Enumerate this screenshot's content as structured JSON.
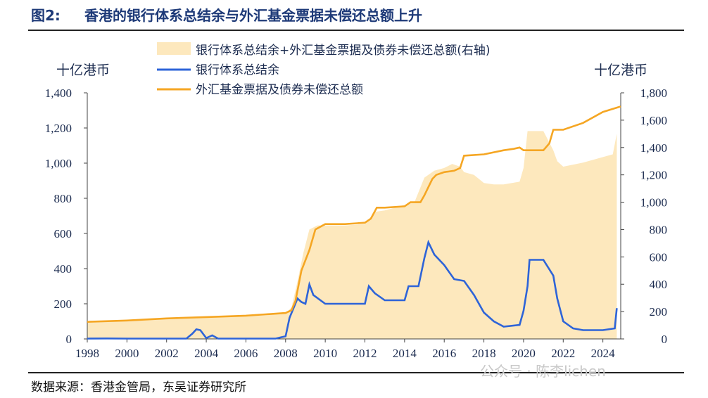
{
  "figure": {
    "number": "图2:",
    "title": "香港的银行体系总结余与外汇基金票据未偿还总额上升",
    "source": "数据来源：香港金管局，东吴证券研究所",
    "watermark": "公众号 · 陈李lichen"
  },
  "colors": {
    "area": "#fde8bd",
    "blue_line": "#2e64d8",
    "orange_line": "#f5a623",
    "text": "#1b2b4f"
  },
  "chart_data": {
    "type": "line",
    "title": "",
    "ylabel_left": "十亿港币",
    "ylabel_right": "十亿港币",
    "xlim": [
      1998,
      2024.9
    ],
    "ylim_left": [
      0,
      1400
    ],
    "ylim_right": [
      0,
      1800
    ],
    "x_ticks": [
      1998,
      2000,
      2002,
      2004,
      2006,
      2008,
      2010,
      2012,
      2014,
      2016,
      2018,
      2020,
      2022,
      2024
    ],
    "y_ticks_left": [
      "0",
      "200",
      "400",
      "600",
      "800",
      "1,000",
      "1,200",
      "1,400"
    ],
    "y_ticks_right": [
      "0",
      "200",
      "400",
      "600",
      "800",
      "1,000",
      "1,200",
      "1,400",
      "1,600",
      "1,800"
    ],
    "grid": false,
    "legend": "top-center",
    "series": [
      {
        "name": "银行体系总结余+外汇基金票据及债券未偿还总额(右轴)",
        "kind": "area",
        "axis": "right",
        "points": [
          [
            1998,
            125
          ],
          [
            2000,
            135
          ],
          [
            2002,
            150
          ],
          [
            2003.5,
            160
          ],
          [
            2004,
            165
          ],
          [
            2006,
            175
          ],
          [
            2007.5,
            185
          ],
          [
            2008,
            190
          ],
          [
            2008.3,
            230
          ],
          [
            2008.6,
            420
          ],
          [
            2008.9,
            630
          ],
          [
            2009.2,
            800
          ],
          [
            2009.6,
            830
          ],
          [
            2010,
            830
          ],
          [
            2011,
            830
          ],
          [
            2012,
            840
          ],
          [
            2012.5,
            930
          ],
          [
            2013,
            940
          ],
          [
            2014,
            980
          ],
          [
            2014.5,
            1000
          ],
          [
            2015,
            1180
          ],
          [
            2015.5,
            1230
          ],
          [
            2016,
            1250
          ],
          [
            2016.4,
            1280
          ],
          [
            2016.8,
            1260
          ],
          [
            2017,
            1220
          ],
          [
            2017.5,
            1200
          ],
          [
            2018,
            1140
          ],
          [
            2018.5,
            1130
          ],
          [
            2019,
            1130
          ],
          [
            2019.8,
            1150
          ],
          [
            2020,
            1250
          ],
          [
            2020.2,
            1520
          ],
          [
            2021,
            1520
          ],
          [
            2021.5,
            1380
          ],
          [
            2021.7,
            1300
          ],
          [
            2022,
            1260
          ],
          [
            2023,
            1290
          ],
          [
            2024,
            1330
          ],
          [
            2024.5,
            1350
          ],
          [
            2024.7,
            1500
          ]
        ]
      },
      {
        "name": "银行体系总结余",
        "kind": "line",
        "axis": "left",
        "points": [
          [
            1998,
            2
          ],
          [
            1999,
            3
          ],
          [
            2000,
            2
          ],
          [
            2003,
            2
          ],
          [
            2003.3,
            30
          ],
          [
            2003.5,
            55
          ],
          [
            2003.7,
            50
          ],
          [
            2004,
            5
          ],
          [
            2004.3,
            20
          ],
          [
            2004.6,
            2
          ],
          [
            2006,
            2
          ],
          [
            2007.5,
            2
          ],
          [
            2007.8,
            10
          ],
          [
            2008,
            15
          ],
          [
            2008.2,
            120
          ],
          [
            2008.6,
            230
          ],
          [
            2008.8,
            210
          ],
          [
            2009,
            200
          ],
          [
            2009.2,
            310
          ],
          [
            2009.4,
            250
          ],
          [
            2010,
            200
          ],
          [
            2011,
            200
          ],
          [
            2012,
            200
          ],
          [
            2012.2,
            300
          ],
          [
            2012.5,
            260
          ],
          [
            2013,
            220
          ],
          [
            2014,
            220
          ],
          [
            2014.2,
            300
          ],
          [
            2014.7,
            300
          ],
          [
            2015,
            460
          ],
          [
            2015.2,
            550
          ],
          [
            2015.5,
            480
          ],
          [
            2016,
            420
          ],
          [
            2016.5,
            340
          ],
          [
            2017,
            330
          ],
          [
            2017.5,
            250
          ],
          [
            2018,
            150
          ],
          [
            2018.5,
            100
          ],
          [
            2019,
            70
          ],
          [
            2019.8,
            80
          ],
          [
            2020,
            160
          ],
          [
            2020.2,
            300
          ],
          [
            2020.3,
            450
          ],
          [
            2021,
            450
          ],
          [
            2021.5,
            360
          ],
          [
            2021.7,
            230
          ],
          [
            2022,
            100
          ],
          [
            2022.5,
            60
          ],
          [
            2023,
            50
          ],
          [
            2024,
            50
          ],
          [
            2024.6,
            60
          ],
          [
            2024.7,
            175
          ]
        ]
      },
      {
        "name": "外汇基金票据及债券未偿还总额",
        "kind": "line",
        "axis": "right",
        "points": [
          [
            1998,
            125
          ],
          [
            2000,
            135
          ],
          [
            2002,
            150
          ],
          [
            2004,
            160
          ],
          [
            2006,
            170
          ],
          [
            2007,
            180
          ],
          [
            2008,
            190
          ],
          [
            2008.3,
            210
          ],
          [
            2008.5,
            280
          ],
          [
            2008.8,
            500
          ],
          [
            2009.2,
            650
          ],
          [
            2009.5,
            800
          ],
          [
            2010,
            840
          ],
          [
            2011,
            840
          ],
          [
            2012,
            850
          ],
          [
            2012.3,
            880
          ],
          [
            2012.6,
            960
          ],
          [
            2013,
            960
          ],
          [
            2014,
            970
          ],
          [
            2014.3,
            1000
          ],
          [
            2014.8,
            1000
          ],
          [
            2015,
            1050
          ],
          [
            2015.4,
            1170
          ],
          [
            2015.6,
            1200
          ],
          [
            2016,
            1220
          ],
          [
            2016.5,
            1230
          ],
          [
            2016.8,
            1250
          ],
          [
            2017,
            1340
          ],
          [
            2018,
            1350
          ],
          [
            2019,
            1380
          ],
          [
            2019.5,
            1390
          ],
          [
            2019.8,
            1400
          ],
          [
            2020,
            1380
          ],
          [
            2021,
            1380
          ],
          [
            2021.3,
            1430
          ],
          [
            2021.5,
            1530
          ],
          [
            2022,
            1530
          ],
          [
            2023,
            1580
          ],
          [
            2024,
            1660
          ],
          [
            2024.9,
            1700
          ]
        ]
      }
    ]
  }
}
